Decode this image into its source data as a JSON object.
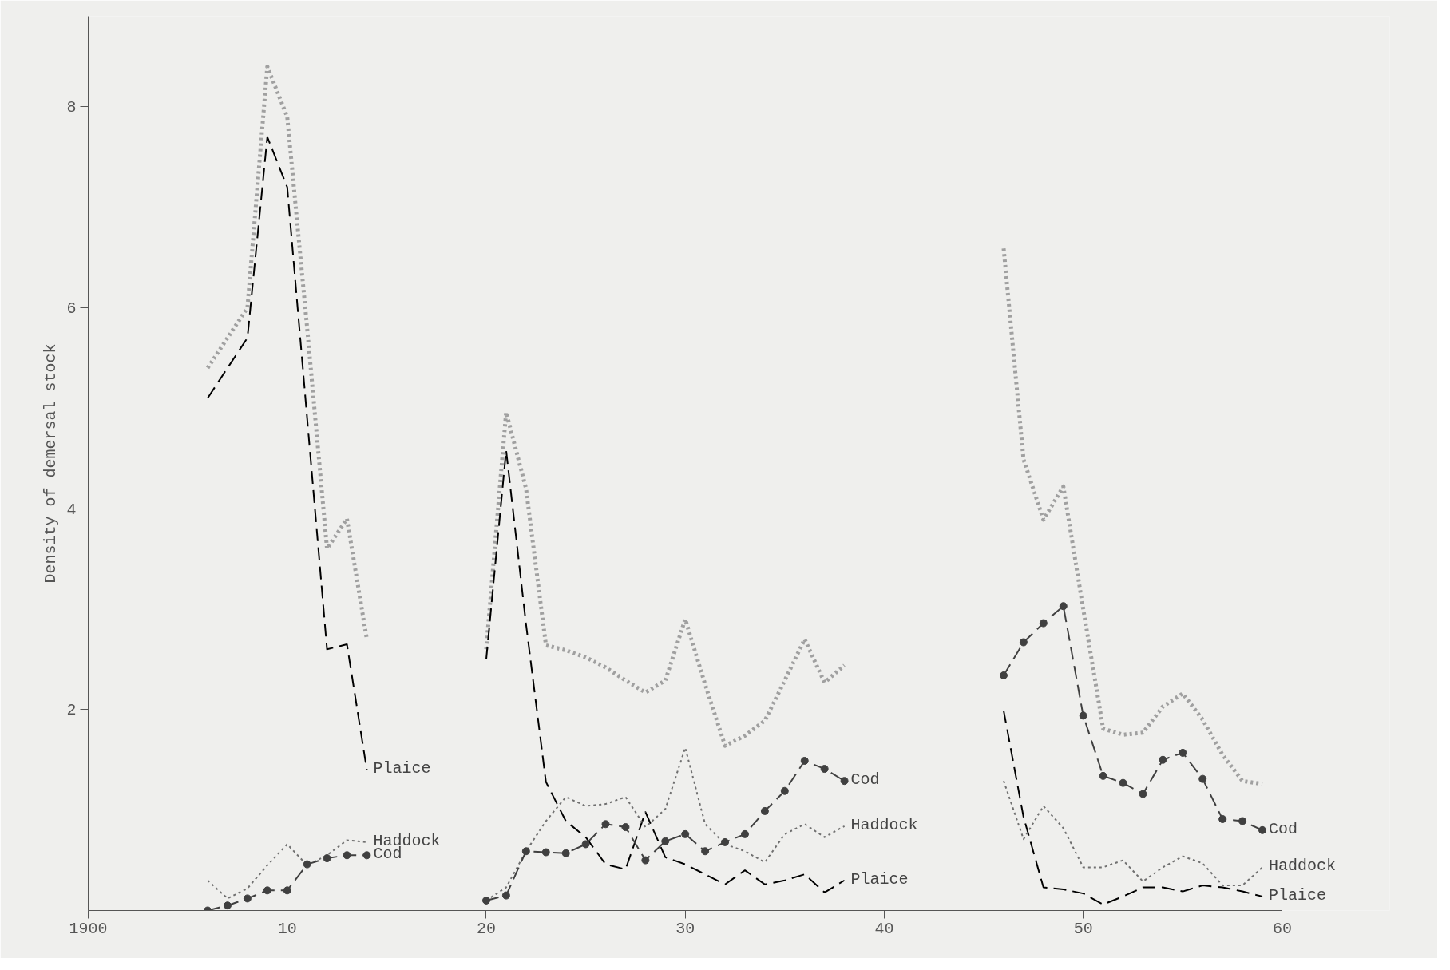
{
  "chart_data": {
    "type": "line",
    "ylabel": "Density of demersal stock",
    "x": [
      1906,
      1907,
      1908,
      1909,
      1910,
      1911,
      1912,
      1913,
      1914,
      1915,
      1916,
      1917,
      1918,
      1919,
      1920,
      1921,
      1922,
      1923,
      1924,
      1925,
      1926,
      1927,
      1928,
      1929,
      1930,
      1931,
      1932,
      1933,
      1934,
      1935,
      1936,
      1937,
      1938,
      1939,
      1940,
      1941,
      1942,
      1943,
      1944,
      1945,
      1946,
      1947,
      1948,
      1949,
      1950,
      1951,
      1952,
      1953,
      1954,
      1955,
      1956,
      1957,
      1958,
      1959
    ],
    "series": [
      {
        "color": "#a0a0a0",
        "line_style": "dotted",
        "values": [
          5.4,
          5.7,
          6.0,
          8.4,
          7.9,
          5.8,
          3.6,
          3.9,
          2.7,
          null,
          null,
          null,
          null,
          null,
          2.6,
          4.96,
          4.2,
          2.64,
          2.59,
          2.52,
          2.42,
          2.29,
          2.17,
          2.29,
          2.9,
          2.25,
          1.64,
          1.74,
          1.89,
          2.29,
          2.7,
          2.27,
          2.44,
          null,
          null,
          null,
          null,
          null,
          null,
          null,
          6.59,
          4.49,
          3.89,
          4.22,
          3.0,
          1.81,
          1.75,
          1.77,
          2.03,
          2.16,
          1.9,
          1.55,
          1.29,
          1.26
        ]
      },
      {
        "name": "Plaice",
        "color": "#000000",
        "line_style": "dashed",
        "values": [
          5.1,
          5.4,
          5.7,
          7.7,
          7.2,
          4.9,
          2.6,
          2.65,
          1.4,
          null,
          null,
          null,
          null,
          null,
          2.5,
          4.58,
          2.85,
          1.28,
          0.89,
          0.73,
          0.46,
          0.41,
          0.98,
          0.53,
          0.46,
          0.36,
          0.26,
          0.4,
          0.26,
          0.3,
          0.36,
          0.18,
          0.3,
          null,
          null,
          null,
          null,
          null,
          null,
          null,
          1.99,
          0.93,
          0.23,
          0.21,
          0.17,
          0.06,
          0.14,
          0.23,
          0.23,
          0.19,
          0.25,
          0.23,
          0.19,
          0.14
        ]
      },
      {
        "name": "Haddock",
        "color": "#707070",
        "line_style": "dotted",
        "values": [
          0.3,
          0.12,
          0.22,
          0.45,
          0.66,
          0.45,
          0.55,
          0.7,
          0.68,
          null,
          null,
          null,
          null,
          null,
          0.1,
          0.23,
          0.59,
          0.89,
          1.13,
          1.04,
          1.06,
          1.13,
          0.83,
          1.01,
          1.62,
          0.86,
          0.66,
          0.59,
          0.48,
          0.76,
          0.86,
          0.73,
          0.84,
          null,
          null,
          null,
          null,
          null,
          null,
          null,
          1.29,
          0.71,
          1.04,
          0.82,
          0.43,
          0.43,
          0.5,
          0.29,
          0.43,
          0.54,
          0.47,
          0.25,
          0.25,
          0.43
        ]
      },
      {
        "name": "Cod",
        "color": "#404040",
        "line_style": "dashed",
        "marker": "circle",
        "values": [
          0.0,
          0.05,
          0.12,
          0.2,
          0.2,
          0.46,
          0.52,
          0.55,
          0.55,
          null,
          null,
          null,
          null,
          null,
          0.1,
          0.15,
          0.59,
          0.58,
          0.57,
          0.66,
          0.86,
          0.83,
          0.5,
          0.69,
          0.76,
          0.59,
          0.68,
          0.76,
          0.99,
          1.19,
          1.49,
          1.41,
          1.29,
          null,
          null,
          null,
          null,
          null,
          null,
          null,
          2.34,
          2.67,
          2.86,
          3.03,
          1.94,
          1.34,
          1.27,
          1.16,
          1.5,
          1.57,
          1.31,
          0.91,
          0.89,
          0.8
        ]
      }
    ],
    "xlim": [
      1900,
      1960
    ],
    "xticks": [
      1900,
      {
        "value": 1910,
        "label": "10"
      },
      {
        "value": 1920,
        "label": "20"
      },
      {
        "value": 1930,
        "label": "30"
      },
      {
        "value": 1940,
        "label": "40"
      },
      {
        "value": 1950,
        "label": "50"
      },
      {
        "value": 1960,
        "label": "60"
      }
    ],
    "ylim": [
      0,
      8.9
    ],
    "yticks": [
      2,
      4,
      6,
      8
    ],
    "grid": false
  }
}
